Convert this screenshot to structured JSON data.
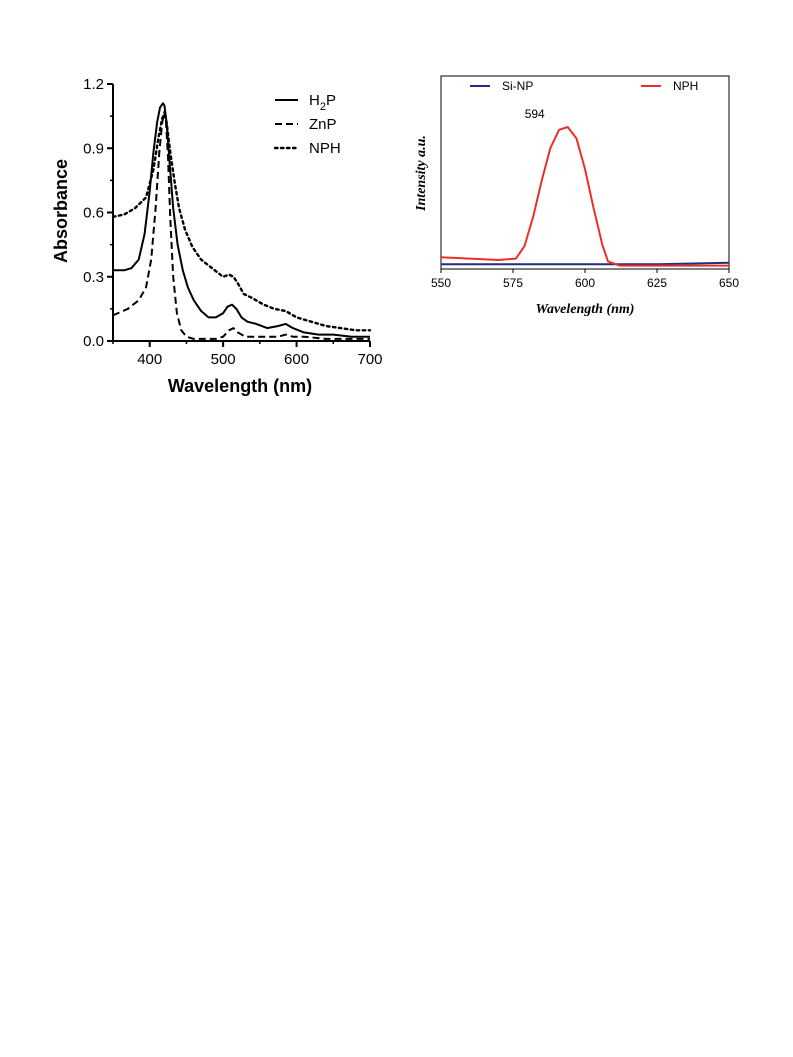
{
  "chart_data": [
    {
      "type": "line",
      "xlabel": "Wavelength (nm)",
      "ylabel": "Absorbance",
      "xlim": [
        350,
        700
      ],
      "ylim": [
        0.0,
        1.2
      ],
      "x_ticks": [
        "400",
        "500",
        "600",
        "700"
      ],
      "y_ticks": [
        "0.0",
        "0.3",
        "0.6",
        "0.9",
        "1.2"
      ],
      "grid": false,
      "legend_position": "top-right",
      "series": [
        {
          "name": "H2P",
          "legend_main": "H",
          "legend_sub": "2",
          "legend_tail": "P",
          "style": "solid",
          "x": [
            350,
            365,
            375,
            385,
            393,
            400,
            405,
            410,
            414,
            418,
            420,
            423,
            427,
            432,
            438,
            445,
            452,
            460,
            470,
            480,
            490,
            500,
            506,
            512,
            518,
            525,
            533,
            545,
            560,
            575,
            585,
            595,
            610,
            630,
            650,
            675,
            700
          ],
          "y": [
            0.33,
            0.33,
            0.34,
            0.38,
            0.5,
            0.7,
            0.88,
            1.02,
            1.09,
            1.11,
            1.1,
            1.02,
            0.84,
            0.62,
            0.45,
            0.33,
            0.25,
            0.19,
            0.14,
            0.11,
            0.11,
            0.13,
            0.16,
            0.17,
            0.15,
            0.11,
            0.09,
            0.08,
            0.06,
            0.07,
            0.08,
            0.06,
            0.04,
            0.03,
            0.03,
            0.02,
            0.02
          ]
        },
        {
          "name": "ZnP",
          "legend_main": "ZnP",
          "style": "dashed",
          "x": [
            350,
            370,
            385,
            395,
            402,
            408,
            413,
            417,
            420,
            422,
            425,
            428,
            432,
            437,
            443,
            450,
            460,
            475,
            490,
            500,
            508,
            514,
            520,
            530,
            545,
            560,
            575,
            585,
            595,
            610,
            640,
            670,
            700
          ],
          "y": [
            0.12,
            0.15,
            0.19,
            0.25,
            0.38,
            0.62,
            0.88,
            1.02,
            1.07,
            1.03,
            0.85,
            0.57,
            0.3,
            0.13,
            0.05,
            0.02,
            0.01,
            0.01,
            0.01,
            0.02,
            0.05,
            0.06,
            0.04,
            0.02,
            0.02,
            0.02,
            0.02,
            0.03,
            0.02,
            0.02,
            0.01,
            0.01,
            0.01
          ]
        },
        {
          "name": "NPH",
          "legend_main": "NPH",
          "style": "dotted",
          "x": [
            350,
            365,
            380,
            395,
            405,
            412,
            417,
            420,
            423,
            428,
            434,
            440,
            448,
            458,
            470,
            485,
            500,
            508,
            514,
            520,
            528,
            540,
            555,
            570,
            585,
            600,
            620,
            640,
            660,
            680,
            700
          ],
          "y": [
            0.58,
            0.59,
            0.62,
            0.67,
            0.8,
            0.95,
            1.04,
            1.06,
            1.02,
            0.88,
            0.74,
            0.62,
            0.52,
            0.44,
            0.38,
            0.34,
            0.3,
            0.31,
            0.3,
            0.27,
            0.22,
            0.2,
            0.17,
            0.15,
            0.14,
            0.11,
            0.09,
            0.07,
            0.06,
            0.05,
            0.05
          ]
        }
      ]
    },
    {
      "type": "line",
      "xlabel": "Wavelength (nm)",
      "ylabel": "Intensity a.u.",
      "xlim": [
        550,
        650
      ],
      "x_ticks": [
        "550",
        "575",
        "600",
        "625",
        "650"
      ],
      "grid": false,
      "legend_position": "top",
      "annotation": "594",
      "annotation_x": 594,
      "series": [
        {
          "name": "Si-NP",
          "color": "#1f2f7a",
          "x": [
            550,
            575,
            600,
            625,
            650
          ],
          "y": [
            0.02,
            0.02,
            0.02,
            0.02,
            0.03
          ]
        },
        {
          "name": "NPH",
          "color": "#e8302a",
          "x": [
            550,
            560,
            570,
            576,
            579,
            582,
            585,
            588,
            591,
            594,
            597,
            600,
            603,
            606,
            608,
            612,
            625,
            650
          ],
          "y": [
            0.07,
            0.06,
            0.05,
            0.06,
            0.15,
            0.36,
            0.62,
            0.85,
            0.98,
            1.0,
            0.92,
            0.7,
            0.42,
            0.16,
            0.04,
            0.01,
            0.01,
            0.01
          ]
        }
      ]
    }
  ]
}
